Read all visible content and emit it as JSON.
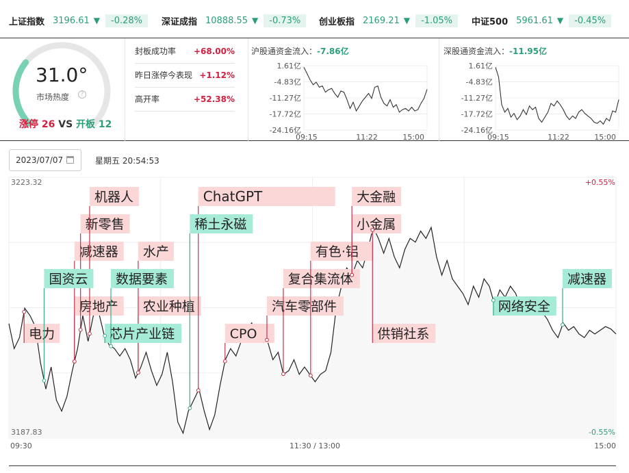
{
  "tickers": [
    {
      "name": "上证指数",
      "value": "3196.61",
      "change": "-0.28%"
    },
    {
      "name": "深证成指",
      "value": "10888.55",
      "change": "-0.73%"
    },
    {
      "name": "创业板指",
      "value": "2169.21",
      "change": "-1.05%"
    },
    {
      "name": "中证500",
      "value": "5961.61",
      "change": "-0.45%"
    }
  ],
  "gauge": {
    "temperature": "31.0°",
    "label": "市场热度",
    "level": 0.31,
    "limit_up_label": "涨停",
    "limit_up_count": "26",
    "vs": "VS",
    "open_board_label": "开板",
    "open_board_count": "12"
  },
  "stats": [
    {
      "label": "封板成功率",
      "value": "+68.00%"
    },
    {
      "label": "昨日涨停今表现",
      "value": "+1.12%"
    },
    {
      "label": "高开率",
      "value": "+52.38%"
    }
  ],
  "colors": {
    "up": "#d02040",
    "down": "#2b9e79",
    "red_tag": "#fcd7d7",
    "green_tag": "#a6ebd8"
  },
  "date": "2023/07/07",
  "weekday_time": "星期五 20:54:53",
  "chart_data": [
    {
      "type": "line",
      "title": "沪股通资金流入：",
      "title_value": "-7.86亿",
      "y_ticks": [
        "1.61亿",
        "-4.83亿",
        "-11.27亿",
        "-17.72亿",
        "-24.16亿"
      ],
      "ylim": [
        -24.16,
        1.61
      ],
      "x_ticks": [
        "09:15",
        "11:22",
        "15:00"
      ],
      "values": [
        1.0,
        -1.5,
        -4.0,
        -6.0,
        -5.0,
        -7.0,
        -6.5,
        -9.0,
        -8.0,
        -7.5,
        -9.5,
        -11.0,
        -8.5,
        -9.0,
        -12.0,
        -15.5,
        -13.0,
        -16.5,
        -14.5,
        -12.5,
        -11.0,
        -9.5,
        -11.5,
        -7.0,
        -6.5,
        -11.0,
        -13.5,
        -14.5,
        -12.0,
        -15.0,
        -14.0,
        -17.0,
        -16.0,
        -15.5,
        -16.5,
        -15.0,
        -16.5,
        -16.0,
        -13.5,
        -11.5,
        -7.86
      ]
    },
    {
      "type": "line",
      "title": "深股通资金流入：",
      "title_value": "-11.95亿",
      "y_ticks": [
        "1.61亿",
        "-4.83亿",
        "-11.27亿",
        "-17.72亿",
        "-24.16亿"
      ],
      "ylim": [
        -24.16,
        1.61
      ],
      "x_ticks": [
        "09:15",
        "11:22",
        "15:00"
      ],
      "values": [
        1.0,
        -3.0,
        -14.0,
        -17.0,
        -15.5,
        -19.0,
        -17.5,
        -20.0,
        -18.5,
        -16.0,
        -18.0,
        -14.5,
        -16.0,
        -15.0,
        -19.5,
        -21.0,
        -19.0,
        -17.0,
        -13.5,
        -14.5,
        -12.5,
        -14.0,
        -16.0,
        -18.5,
        -20.0,
        -18.5,
        -19.5,
        -17.0,
        -16.0,
        -17.5,
        -18.5,
        -19.5,
        -21.0,
        -21.5,
        -20.5,
        -21.8,
        -19.5,
        -20.5,
        -16.5,
        -17.0,
        -11.95
      ]
    },
    {
      "type": "line",
      "title": "",
      "y_max_label": "3223.32",
      "y_min_label": "3187.83",
      "pct_max_label": "+0.55%",
      "pct_min_label": "-0.55%",
      "ylim": [
        3187.83,
        3223.32
      ],
      "x_ticks": [
        "09:30",
        "11:30 / 13:00",
        "15:00"
      ],
      "values": [
        3203.4,
        3200.0,
        3201.5,
        3205.5,
        3204.5,
        3203.0,
        3198.0,
        3194.5,
        3197.5,
        3193.0,
        3191.5,
        3193.5,
        3197.0,
        3200.0,
        3204.5,
        3201.0,
        3204.5,
        3205.0,
        3202.0,
        3200.5,
        3200.0,
        3199.0,
        3200.0,
        3198.5,
        3196.0,
        3197.5,
        3199.5,
        3197.0,
        3195.0,
        3196.5,
        3199.5,
        3195.5,
        3190.0,
        3188.5,
        3191.5,
        3193.0,
        3194.5,
        3191.5,
        3189.0,
        3191.0,
        3195.0,
        3198.5,
        3200.0,
        3199.0,
        3201.0,
        3202.5,
        3203.5,
        3201.5,
        3202.5,
        3201.0,
        3198.5,
        3199.5,
        3196.5,
        3197.0,
        3198.5,
        3196.5,
        3197.5,
        3196.5,
        3195.5,
        3196.5,
        3197.0,
        3199.5,
        3205.5,
        3208.5,
        3211.0,
        3210.0,
        3212.0,
        3211.0,
        3213.5,
        3216.5,
        3215.0,
        3213.0,
        3215.0,
        3212.5,
        3211.0,
        3213.5,
        3215.0,
        3214.5,
        3216.0,
        3215.0,
        3216.5,
        3212.5,
        3210.0,
        3212.0,
        3209.5,
        3208.5,
        3207.5,
        3206.0,
        3208.5,
        3207.0,
        3209.5,
        3208.5,
        3206.0,
        3208.0,
        3207.0,
        3208.5,
        3207.5,
        3205.5,
        3206.5,
        3205.0,
        3206.5,
        3205.0,
        3204.0,
        3202.5,
        3201.5,
        3203.5,
        3202.5,
        3203.0,
        3202.0,
        3201.5,
        3202.5,
        3202.0,
        3202.5,
        3203.0,
        3202.7,
        3202.0
      ],
      "red_tags": [
        {
          "text": "电力",
          "t": 0.025
        },
        {
          "text": "房地产",
          "t": 0.108
        },
        {
          "text": "减速器",
          "t": 0.108
        },
        {
          "text": "新零售",
          "t": 0.118
        },
        {
          "text": "机器人",
          "t": 0.133
        },
        {
          "text": "农业种植",
          "t": 0.213
        },
        {
          "text": "水产",
          "t": 0.213
        },
        {
          "text": "ChatGPT",
          "t": 0.312
        },
        {
          "text": "CPO",
          "t": 0.356
        },
        {
          "text": "汽车零部件",
          "t": 0.425
        },
        {
          "text": "复合集流体",
          "t": 0.452
        },
        {
          "text": "有色·铝",
          "t": 0.497
        },
        {
          "text": "小金属",
          "t": 0.565
        },
        {
          "text": "大金融",
          "t": 0.565
        },
        {
          "text": "供销社系",
          "t": 0.599
        }
      ],
      "green_tags": [
        {
          "text": "国资云",
          "t": 0.058
        },
        {
          "text": "芯片产业链",
          "t": 0.158
        },
        {
          "text": "数据要素",
          "t": 0.168
        },
        {
          "text": "稀土永磁",
          "t": 0.298
        },
        {
          "text": "网络安全",
          "t": 0.798
        },
        {
          "text": "减速器",
          "t": 0.912
        }
      ]
    }
  ]
}
